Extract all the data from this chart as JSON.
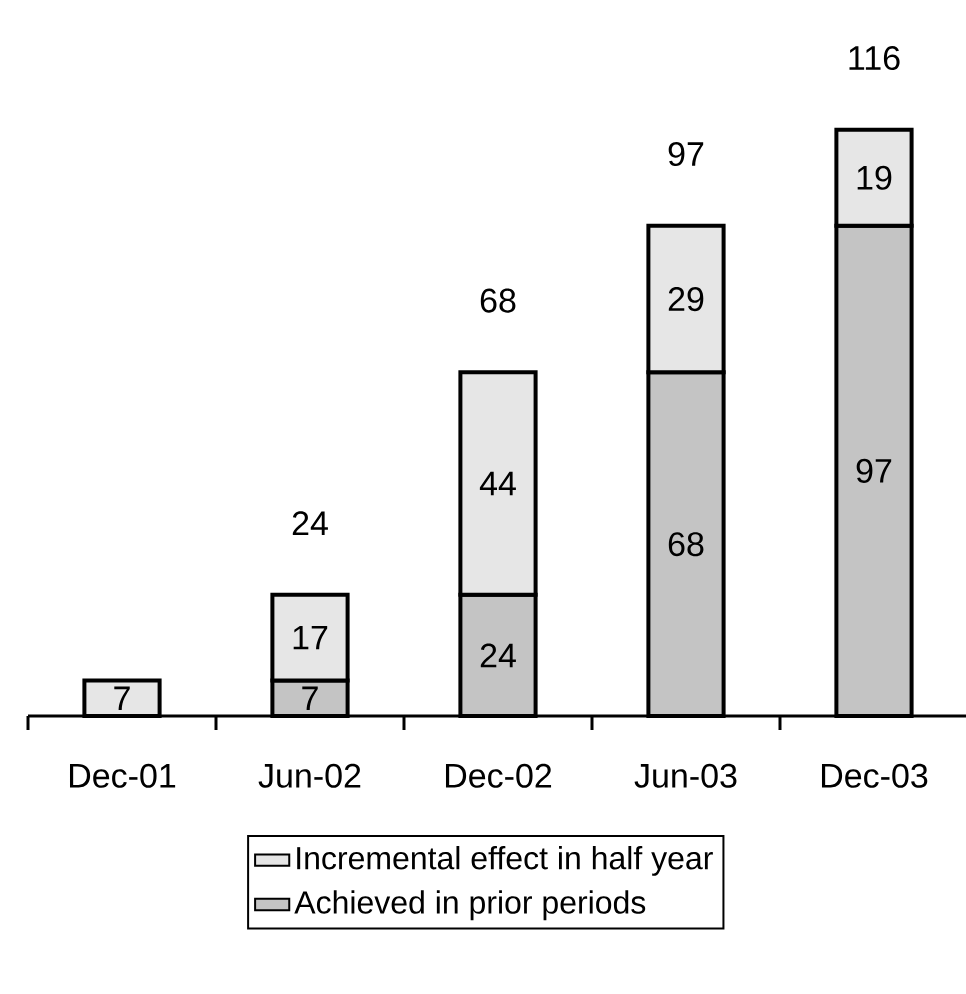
{
  "chart_data": {
    "type": "bar",
    "stacked": true,
    "data_labels": true,
    "legend": "bottom",
    "categories": [
      "Dec-01",
      "Jun-02",
      "Dec-02",
      "Jun-03",
      "Dec-03"
    ],
    "series": [
      {
        "name": "Achieved in prior periods",
        "color": "#c4c4c4",
        "values": [
          null,
          7,
          24,
          68,
          97
        ]
      },
      {
        "name": "Incremental effect in half year",
        "color": "#e6e6e6",
        "values": [
          7,
          17,
          44,
          29,
          19
        ]
      }
    ],
    "totals": [
      null,
      "24",
      "68",
      "97",
      "116"
    ]
  }
}
